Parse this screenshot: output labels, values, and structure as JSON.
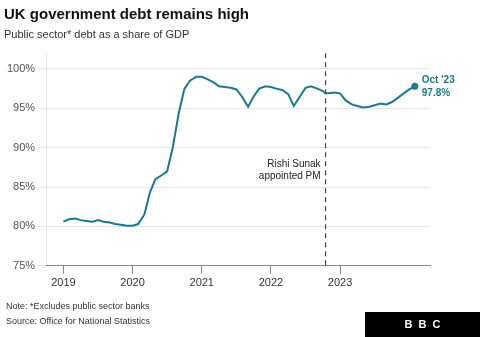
{
  "chart_data": {
    "type": "line",
    "title": "UK government debt remains high",
    "subtitle": "Public sector* debt as a share of GDP",
    "note": "Note: *Excludes public sector banks",
    "source": "Source: Office for National Statistics",
    "logo": "B  B  C",
    "color": "#1a7a8a",
    "marker": "end",
    "grid": "y",
    "annotations": [
      {
        "x": 2022.79,
        "text": "Rishi Sunak\nappointed PM"
      }
    ],
    "end_label": {
      "text": "Oct '23\n97.8%",
      "color": "#1a7a8a"
    },
    "xlim": [
      2018.75,
      2024.3
    ],
    "xticks": [
      2019,
      2020,
      2021,
      2022,
      2023
    ],
    "ylim": [
      75,
      102
    ],
    "yticks": [
      {
        "value": 75,
        "label": "75%"
      },
      {
        "value": 80,
        "label": "80%"
      },
      {
        "value": 85,
        "label": "85%"
      },
      {
        "value": 90,
        "label": "90%"
      },
      {
        "value": 95,
        "label": "95%"
      },
      {
        "value": 100,
        "label": "100%"
      }
    ],
    "x": [
      2019.0,
      2019.08,
      2019.17,
      2019.25,
      2019.33,
      2019.42,
      2019.5,
      2019.58,
      2019.67,
      2019.75,
      2019.83,
      2019.92,
      2020.0,
      2020.08,
      2020.17,
      2020.25,
      2020.33,
      2020.42,
      2020.5,
      2020.58,
      2020.67,
      2020.75,
      2020.83,
      2020.92,
      2021.0,
      2021.08,
      2021.17,
      2021.25,
      2021.33,
      2021.42,
      2021.5,
      2021.58,
      2021.67,
      2021.75,
      2021.83,
      2021.92,
      2022.0,
      2022.08,
      2022.17,
      2022.25,
      2022.33,
      2022.42,
      2022.5,
      2022.58,
      2022.67,
      2022.75,
      2022.79,
      2022.83,
      2022.92,
      2023.0,
      2023.08,
      2023.17,
      2023.25,
      2023.33,
      2023.42,
      2023.5,
      2023.58,
      2023.67,
      2023.75,
      2023.83,
      2023.92,
      2024.0,
      2024.08
    ],
    "values": [
      80.6,
      80.9,
      81.0,
      80.8,
      80.7,
      80.6,
      80.8,
      80.6,
      80.5,
      80.3,
      80.2,
      80.1,
      80.1,
      80.3,
      81.5,
      84.3,
      86.0,
      86.5,
      87.0,
      90.0,
      94.5,
      97.5,
      98.5,
      99.0,
      99.0,
      98.7,
      98.3,
      97.8,
      97.7,
      97.6,
      97.4,
      96.5,
      95.2,
      96.5,
      97.5,
      97.8,
      97.7,
      97.5,
      97.3,
      96.8,
      95.3,
      96.5,
      97.6,
      97.8,
      97.5,
      97.2,
      96.9,
      96.9,
      97.0,
      96.9,
      96.0,
      95.5,
      95.3,
      95.1,
      95.2,
      95.4,
      95.6,
      95.5,
      95.8,
      96.3,
      96.9,
      97.4,
      97.8
    ]
  }
}
